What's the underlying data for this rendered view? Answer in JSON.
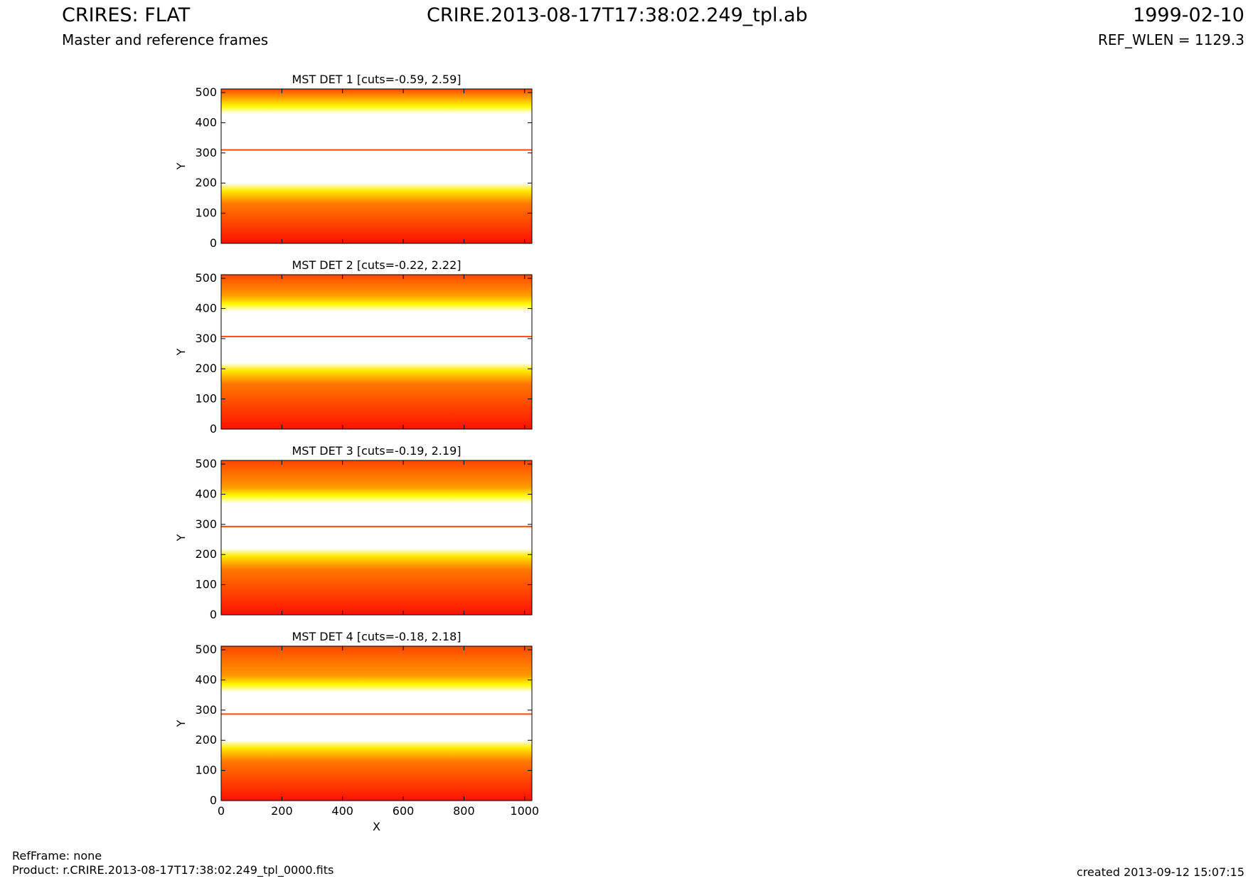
{
  "header": {
    "title_left": "CRIRES: FLAT",
    "subtitle_left": "Master and reference frames",
    "title_center": "CRIRE.2013-08-17T17:38:02.249_tpl.ab",
    "title_right": "1999-02-10",
    "subtitle_right": "REF_WLEN = 1129.3"
  },
  "footer": {
    "ref_frame": "RefFrame: none",
    "product": "Product: r.CRIRE.2013-08-17T17:38:02.249_tpl_0000.fits",
    "created": "created 2013-09-12 15:07:15"
  },
  "chart_data": [
    {
      "type": "heatmap",
      "title": "MST DET 1 [cuts=-0.59, 2.59]",
      "xlabel": "",
      "ylabel": "Y",
      "xlim": [
        0,
        1024
      ],
      "ylim": [
        0,
        512
      ],
      "xticks": [],
      "yticks": [
        0,
        100,
        200,
        300,
        400,
        500
      ],
      "colormap": "hot",
      "cuts": [
        -0.59,
        2.59
      ],
      "bright_band_y": [
        200,
        430
      ],
      "line_y": 310
    },
    {
      "type": "heatmap",
      "title": "MST DET 2 [cuts=-0.22, 2.22]",
      "xlabel": "",
      "ylabel": "Y",
      "xlim": [
        0,
        1024
      ],
      "ylim": [
        0,
        512
      ],
      "xticks": [],
      "yticks": [
        0,
        100,
        200,
        300,
        400,
        500
      ],
      "colormap": "hot",
      "cuts": [
        -0.22,
        2.22
      ],
      "bright_band_y": [
        220,
        390
      ],
      "line_y": 307
    },
    {
      "type": "heatmap",
      "title": "MST DET 3 [cuts=-0.19, 2.19]",
      "xlabel": "",
      "ylabel": "Y",
      "xlim": [
        0,
        1024
      ],
      "ylim": [
        0,
        512
      ],
      "xticks": [],
      "yticks": [
        0,
        100,
        200,
        300,
        400,
        500
      ],
      "colormap": "hot",
      "cuts": [
        -0.19,
        2.19
      ],
      "bright_band_y": [
        220,
        370
      ],
      "line_y": 293
    },
    {
      "type": "heatmap",
      "title": "MST DET 4 [cuts=-0.18, 2.18]",
      "xlabel": "X",
      "ylabel": "Y",
      "xlim": [
        0,
        1024
      ],
      "ylim": [
        0,
        512
      ],
      "xticks": [
        0,
        200,
        400,
        600,
        800,
        1000
      ],
      "yticks": [
        0,
        100,
        200,
        300,
        400,
        500
      ],
      "colormap": "hot",
      "cuts": [
        -0.18,
        2.18
      ],
      "bright_band_y": [
        200,
        360
      ],
      "line_y": 287
    }
  ]
}
